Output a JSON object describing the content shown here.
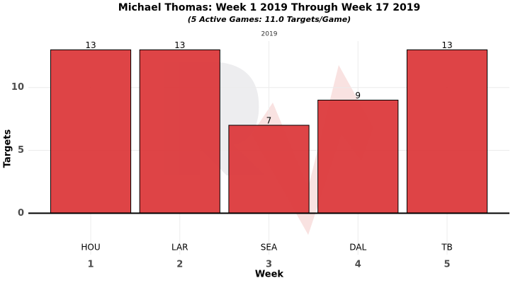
{
  "chart_data": {
    "type": "bar",
    "title": "Michael Thomas: Week 1 2019 Through Week 17 2019",
    "subtitle": "(5 Active Games: 11.0 Targets/Game)",
    "facet_label": "2019",
    "x_label": "Week",
    "y_label": "Targets",
    "categories": [
      "1",
      "2",
      "3",
      "4",
      "5"
    ],
    "team_labels": [
      "HOU",
      "LAR",
      "SEA",
      "DAL",
      "TB"
    ],
    "values": [
      13,
      13,
      7,
      9,
      13
    ],
    "color": "#dc3a3c",
    "ylim": [
      -3.3,
      13.7
    ],
    "yticks": [
      0,
      5,
      10
    ],
    "grid": true
  }
}
